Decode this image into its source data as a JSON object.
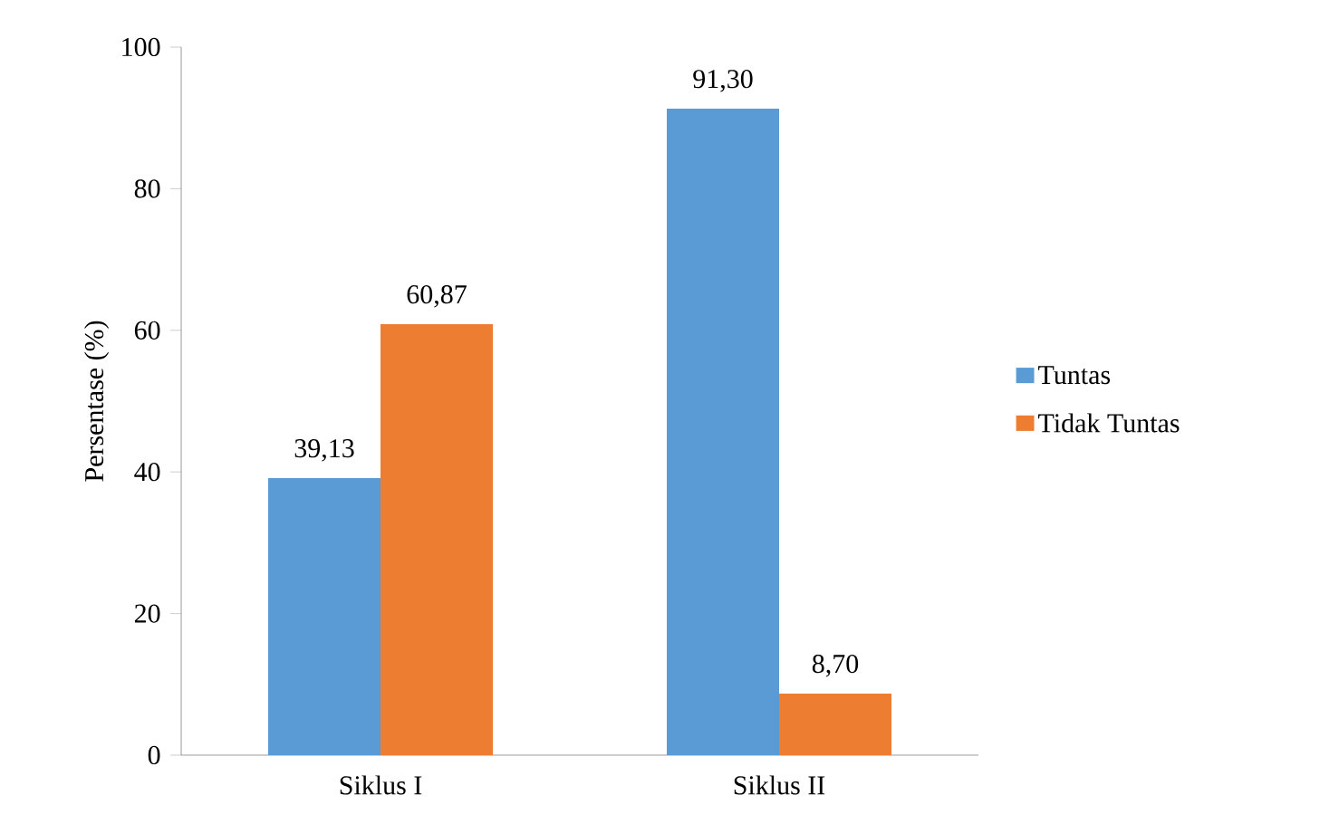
{
  "chart_data": {
    "type": "bar",
    "ylabel": "Persentase (%)",
    "categories": [
      "Siklus I",
      "Siklus II"
    ],
    "series": [
      {
        "name": "Tuntas",
        "color": "#5b9bd5",
        "values": [
          39.13,
          91.3
        ],
        "value_labels": [
          "39,13",
          "91,30"
        ]
      },
      {
        "name": "Tidak Tuntas",
        "color": "#ed7d31",
        "values": [
          60.87,
          8.7
        ],
        "value_labels": [
          "60,87",
          "8,70"
        ]
      }
    ],
    "ylim": [
      0,
      100
    ],
    "yticks": [
      0,
      20,
      40,
      60,
      80,
      100
    ],
    "legend": "right",
    "grid": false
  }
}
